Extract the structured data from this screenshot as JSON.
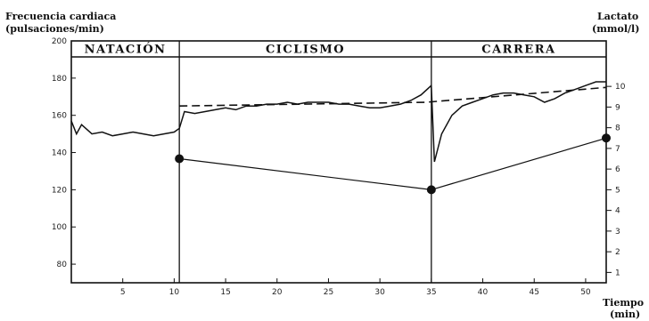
{
  "chart_data": {
    "type": "line",
    "title": "",
    "ylabel": [
      "Frecuencia cardiaca",
      "(pulsaciones/min)"
    ],
    "y2label": [
      "Lactato",
      "(mmol/l)"
    ],
    "xlabel": [
      "Tiempo",
      "(min)"
    ],
    "xlim": [
      0,
      52
    ],
    "ylim": [
      70,
      200
    ],
    "y2lim": [
      0.5,
      12.2
    ],
    "xticks": [
      5,
      10,
      15,
      20,
      25,
      30,
      35,
      40,
      45,
      50
    ],
    "yticks": [
      80,
      100,
      120,
      140,
      160,
      180,
      200
    ],
    "y2ticks": [
      1,
      2,
      3,
      4,
      5,
      6,
      7,
      8,
      9,
      10
    ],
    "segments": [
      {
        "label": "NATACIÓN",
        "x_start": 0,
        "x_end": 10.5
      },
      {
        "label": "CICLISMO",
        "x_start": 10.5,
        "x_end": 35
      },
      {
        "label": "CARRERA",
        "x_start": 35,
        "x_end": 52
      }
    ],
    "series": [
      {
        "name": "",
        "axis": "left",
        "style": "solid",
        "x": [
          0,
          0.5,
          1,
          2,
          3,
          4,
          5,
          6,
          7,
          8,
          9,
          10,
          10.5,
          11,
          12,
          13,
          14,
          15,
          16,
          17,
          18,
          19,
          20,
          21,
          22,
          23,
          24,
          25,
          26,
          27,
          28,
          29,
          30,
          31,
          32,
          33,
          34,
          35,
          35.3,
          36,
          37,
          38,
          39,
          40,
          41,
          42,
          43,
          44,
          45,
          46,
          47,
          48,
          49,
          50,
          51,
          52
        ],
        "y": [
          157,
          150,
          155,
          150,
          151,
          149,
          150,
          151,
          150,
          149,
          150,
          151,
          153,
          162,
          161,
          162,
          163,
          164,
          163,
          165,
          165,
          166,
          166,
          167,
          166,
          167,
          167,
          167,
          166,
          166,
          165,
          164,
          164,
          165,
          166,
          168,
          171,
          176,
          135,
          150,
          160,
          165,
          167,
          169,
          171,
          172,
          172,
          171,
          170,
          167,
          169,
          172,
          174,
          176,
          178,
          178
        ]
      },
      {
        "name": "",
        "axis": "left",
        "style": "dashed",
        "x": [
          10.5,
          34.5,
          52
        ],
        "y": [
          165,
          167,
          175
        ]
      },
      {
        "name": "",
        "axis": "right",
        "style": "markers",
        "x": [
          10.5,
          35,
          52
        ],
        "y": [
          6.5,
          5.0,
          7.5
        ]
      }
    ]
  }
}
